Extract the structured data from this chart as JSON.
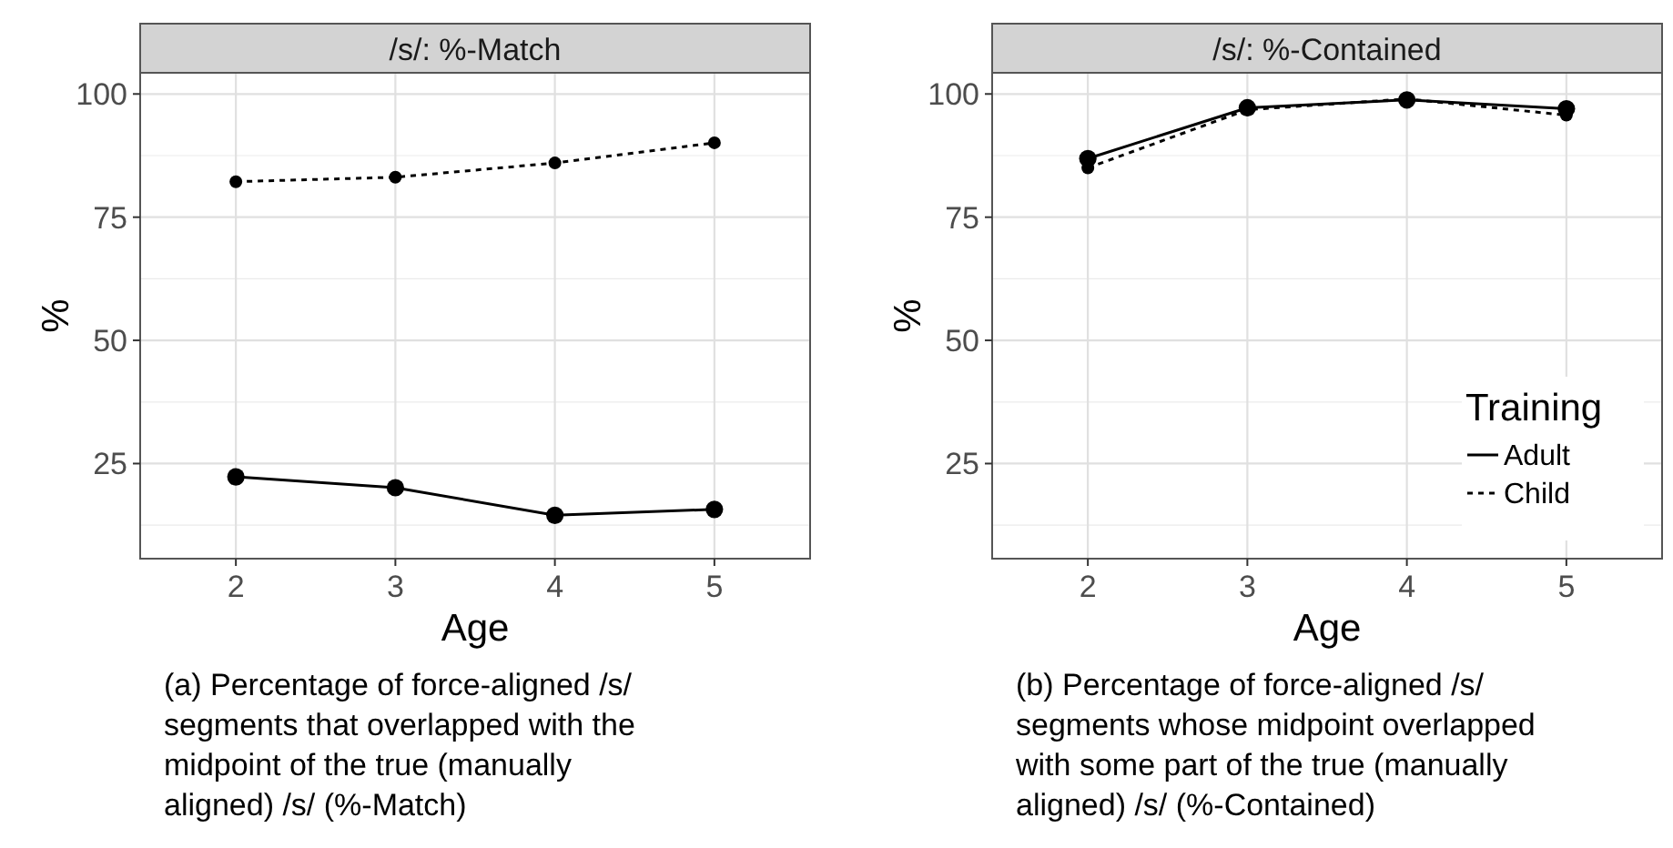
{
  "chart_data": [
    {
      "type": "line",
      "title": "/s/: %-Match",
      "xlabel": "Age",
      "ylabel": "%",
      "x": [
        2,
        3,
        4,
        5
      ],
      "xlim": [
        1.4,
        5.6
      ],
      "xticks": [
        2,
        3,
        4,
        5
      ],
      "ylim": [
        5.7,
        104.3
      ],
      "yticks": [
        25,
        50,
        75,
        100
      ],
      "grid": true,
      "legend": false,
      "marker": "circle",
      "series": [
        {
          "color": "#000000",
          "line_style": "solid",
          "values": [
            22.3,
            20.1,
            14.5,
            15.7
          ]
        },
        {
          "color": "#000000",
          "line_style": "dotted",
          "values": [
            82.2,
            83.1,
            86.0,
            90.1
          ]
        }
      ],
      "annotations": [
        "(a) Percentage of force-aligned /s/ segments that overlapped with the midpoint of the true (manually aligned) /s/ (%-Match)"
      ]
    },
    {
      "type": "line",
      "title": "/s/: %-Contained",
      "xlabel": "Age",
      "ylabel": "%",
      "x": [
        2,
        3,
        4,
        5
      ],
      "xlim": [
        1.4,
        5.6
      ],
      "xticks": [
        2,
        3,
        4,
        5
      ],
      "ylim": [
        5.7,
        104.3
      ],
      "yticks": [
        25,
        50,
        75,
        100
      ],
      "grid": true,
      "legend": "bottom right",
      "legend_title": "Training",
      "marker": "circle",
      "series": [
        {
          "name": "Adult",
          "color": "#000000",
          "line_style": "solid",
          "values": [
            86.9,
            97.2,
            98.8,
            97.0
          ]
        },
        {
          "name": "Child",
          "color": "#000000",
          "line_style": "dotted",
          "values": [
            85.0,
            96.8,
            99.0,
            95.7
          ]
        }
      ],
      "annotations": [
        "(b) Percentage of force-aligned /s/ segments whose midpoint overlapped with some part of the true (manually aligned) /s/ (%-Contained)"
      ]
    }
  ]
}
